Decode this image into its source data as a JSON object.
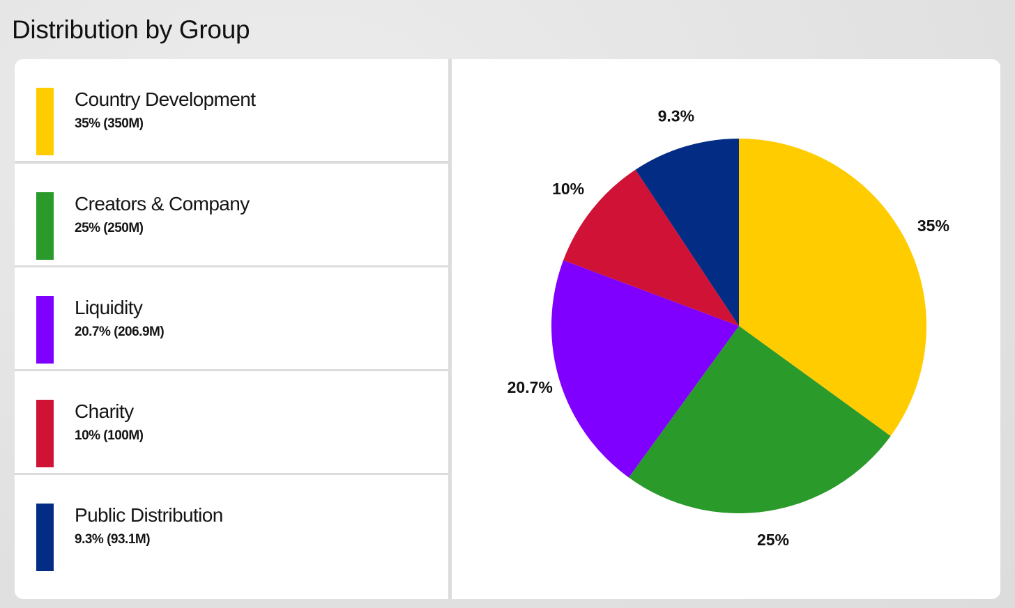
{
  "page": {
    "title": "Distribution by Group"
  },
  "legend": {
    "items": [
      {
        "label": "Country Development",
        "value": "35% (350M)",
        "color": "#ffcc00"
      },
      {
        "label": "Creators & Company",
        "value": "25% (250M)",
        "color": "#2a9a2a"
      },
      {
        "label": "Liquidity",
        "value": "20.7% (206.9M)",
        "color": "#7f00ff"
      },
      {
        "label": "Charity",
        "value": "10% (100M)",
        "color": "#d01236"
      },
      {
        "label": "Public Distribution",
        "value": "9.3% (93.1M)",
        "color": "#032d85"
      }
    ]
  },
  "chart_data": {
    "type": "pie",
    "title": "",
    "categories": [
      "Country Development",
      "Creators & Company",
      "Liquidity",
      "Charity",
      "Public Distribution"
    ],
    "values": [
      35,
      25,
      20.7,
      10,
      9.3
    ],
    "amounts": [
      "350M",
      "250M",
      "206.9M",
      "100M",
      "93.1M"
    ],
    "labels": [
      "35%",
      "25%",
      "20.7%",
      "10%",
      "9.3%"
    ],
    "colors": [
      "#ffcc00",
      "#2a9a2a",
      "#7f00ff",
      "#d01236",
      "#032d85"
    ],
    "start_angle": "12 o'clock",
    "direction": "clockwise",
    "legend_position": "left"
  }
}
